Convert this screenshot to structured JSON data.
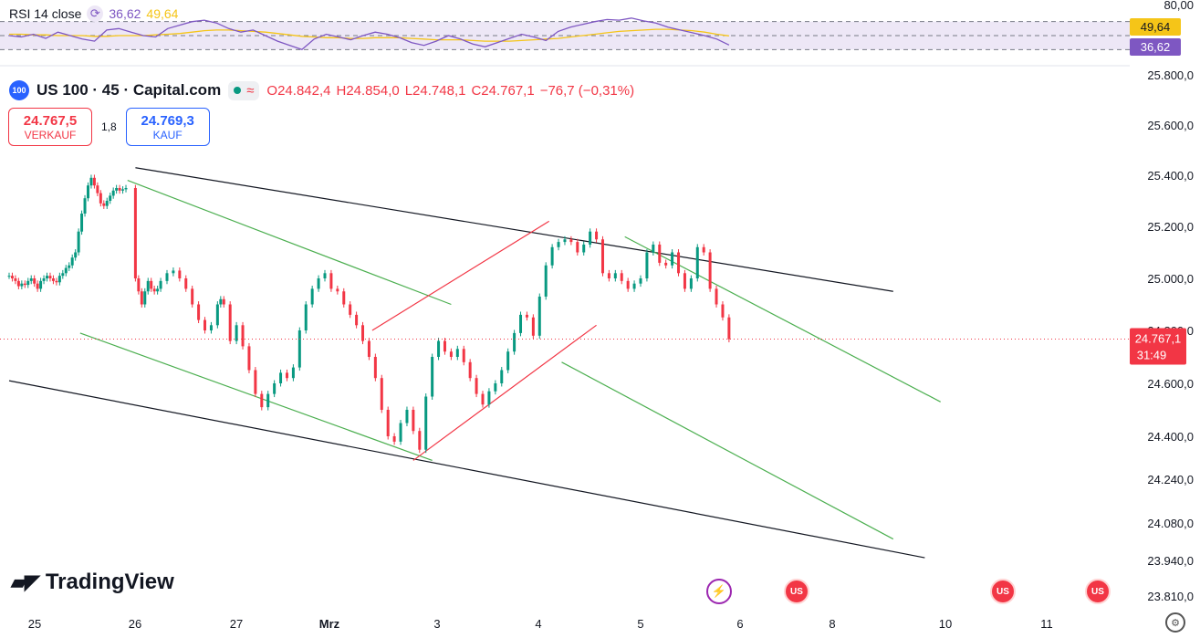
{
  "rsi_panel": {
    "label": "RSI 14 close",
    "value1": "36,62",
    "value2": "49,64",
    "axis_top": "80,00",
    "badge_ma": "49,64",
    "badge_rsi": "36,62"
  },
  "header": {
    "logo_text": "100",
    "symbol": "US 100 · 45 · Capital.com",
    "open": "O24.842,4",
    "high": "H24.854,0",
    "low": "L24.748,1",
    "close": "C24.767,1",
    "change": "−76,7 (−0,31%)"
  },
  "trade": {
    "sell_price": "24.767,5",
    "sell_label": "VERKAUF",
    "spread": "1,8",
    "buy_price": "24.769,3",
    "buy_label": "KAUF"
  },
  "price_badge": {
    "price": "24.767,1",
    "countdown": "31:49"
  },
  "brand": "TradingView",
  "colors": {
    "up": "#089981",
    "down": "#f23645",
    "channel_black": "#131722",
    "channel_green": "#4caf50",
    "channel_red": "#f23645",
    "rsi_line": "#7e57c2",
    "rsi_ma": "#f5c518",
    "rsi_bg": "#ede7f6"
  },
  "icons": [
    "rsi-cycle-icon",
    "bolt-event-icon",
    "us-flag-event-icon",
    "settings-gear-icon"
  ],
  "chart_data": {
    "type": "candlestick",
    "y_axis_labels": [
      "25.800,0",
      "25.600,0",
      "25.400,0",
      "25.200,0",
      "25.000,0",
      "24.800,0",
      "24.600,0",
      "24.400,0",
      "24.240,0",
      "24.080,0",
      "23.940,0",
      "23.810,0"
    ],
    "y_axis_values": [
      25800,
      25600,
      25400,
      25200,
      25000,
      24800,
      24600,
      24400,
      24240,
      24080,
      23940,
      23810
    ],
    "x_axis_labels": [
      "25",
      "26",
      "27",
      "Mrz",
      "3",
      "4",
      "5",
      "6",
      "8",
      "10",
      "11"
    ],
    "candles": [
      [
        0.0,
        25010
      ],
      [
        0.02,
        25000
      ],
      [
        0.04,
        24990
      ],
      [
        0.06,
        24970
      ],
      [
        0.08,
        24980
      ],
      [
        0.1,
        24975
      ],
      [
        0.12,
        24990
      ],
      [
        0.14,
        25000
      ],
      [
        0.16,
        24980
      ],
      [
        0.18,
        24960
      ],
      [
        0.2,
        24990
      ],
      [
        0.22,
        25000
      ],
      [
        0.24,
        25010
      ],
      [
        0.26,
        25000
      ],
      [
        0.28,
        24990
      ],
      [
        0.3,
        24985
      ],
      [
        0.32,
        25010
      ],
      [
        0.34,
        25020
      ],
      [
        0.36,
        25040
      ],
      [
        0.38,
        25050
      ],
      [
        0.4,
        25080
      ],
      [
        0.42,
        25100
      ],
      [
        0.44,
        25180
      ],
      [
        0.46,
        25250
      ],
      [
        0.48,
        25310
      ],
      [
        0.5,
        25360
      ],
      [
        0.52,
        25390
      ],
      [
        0.54,
        25360
      ],
      [
        0.56,
        25330
      ],
      [
        0.58,
        25290
      ],
      [
        0.6,
        25280
      ],
      [
        0.62,
        25300
      ],
      [
        0.64,
        25320
      ],
      [
        0.66,
        25340
      ],
      [
        0.68,
        25350
      ],
      [
        0.7,
        25340
      ],
      [
        0.72,
        25345
      ],
      [
        0.74,
        25350
      ],
      [
        0.8,
        25000
      ],
      [
        0.82,
        24950
      ],
      [
        0.84,
        24900
      ],
      [
        0.86,
        24950
      ],
      [
        0.88,
        24990
      ],
      [
        0.9,
        24960
      ],
      [
        0.92,
        24950
      ],
      [
        0.94,
        24960
      ],
      [
        0.96,
        24990
      ],
      [
        1.0,
        25020
      ],
      [
        1.04,
        25030
      ],
      [
        1.08,
        25000
      ],
      [
        1.12,
        24960
      ],
      [
        1.16,
        24900
      ],
      [
        1.2,
        24840
      ],
      [
        1.24,
        24800
      ],
      [
        1.28,
        24820
      ],
      [
        1.32,
        24900
      ],
      [
        1.34,
        24920
      ],
      [
        1.36,
        24900
      ],
      [
        1.4,
        24760
      ],
      [
        1.44,
        24820
      ],
      [
        1.48,
        24740
      ],
      [
        1.52,
        24650
      ],
      [
        1.56,
        24560
      ],
      [
        1.6,
        24510
      ],
      [
        1.64,
        24560
      ],
      [
        1.68,
        24600
      ],
      [
        1.72,
        24640
      ],
      [
        1.76,
        24620
      ],
      [
        1.8,
        24660
      ],
      [
        1.84,
        24800
      ],
      [
        1.88,
        24900
      ],
      [
        1.92,
        24960
      ],
      [
        1.96,
        25000
      ],
      [
        2.0,
        25020
      ],
      [
        2.04,
        24960
      ],
      [
        2.08,
        24950
      ],
      [
        2.12,
        24900
      ],
      [
        2.16,
        24860
      ],
      [
        2.2,
        24820
      ],
      [
        2.24,
        24760
      ],
      [
        2.28,
        24700
      ],
      [
        2.32,
        24620
      ],
      [
        2.36,
        24500
      ],
      [
        2.4,
        24400
      ],
      [
        2.44,
        24380
      ],
      [
        2.48,
        24450
      ],
      [
        2.52,
        24500
      ],
      [
        2.56,
        24420
      ],
      [
        2.6,
        24350
      ],
      [
        2.64,
        24550
      ],
      [
        2.68,
        24700
      ],
      [
        2.72,
        24760
      ],
      [
        2.76,
        24720
      ],
      [
        2.8,
        24700
      ],
      [
        2.84,
        24730
      ],
      [
        2.88,
        24680
      ],
      [
        2.92,
        24620
      ],
      [
        2.96,
        24560
      ],
      [
        3.0,
        24520
      ],
      [
        3.04,
        24570
      ],
      [
        3.08,
        24600
      ],
      [
        3.12,
        24650
      ],
      [
        3.16,
        24720
      ],
      [
        3.2,
        24790
      ],
      [
        3.24,
        24860
      ],
      [
        3.28,
        24850
      ],
      [
        3.32,
        24780
      ],
      [
        3.36,
        24930
      ],
      [
        3.4,
        25050
      ],
      [
        3.44,
        25120
      ],
      [
        3.48,
        25140
      ],
      [
        3.52,
        25150
      ],
      [
        3.56,
        25140
      ],
      [
        3.6,
        25100
      ],
      [
        3.64,
        25130
      ],
      [
        3.68,
        25180
      ],
      [
        3.72,
        25150
      ],
      [
        3.76,
        25020
      ],
      [
        3.8,
        25000
      ],
      [
        3.84,
        25020
      ],
      [
        3.88,
        24990
      ],
      [
        3.92,
        24960
      ],
      [
        3.96,
        24980
      ],
      [
        4.0,
        25000
      ],
      [
        4.04,
        25100
      ],
      [
        4.08,
        25130
      ],
      [
        4.12,
        25060
      ],
      [
        4.16,
        25050
      ],
      [
        4.2,
        25100
      ],
      [
        4.24,
        25020
      ],
      [
        4.28,
        24960
      ],
      [
        4.32,
        25000
      ],
      [
        4.36,
        25120
      ],
      [
        4.4,
        25100
      ],
      [
        4.44,
        24960
      ],
      [
        4.48,
        24900
      ],
      [
        4.52,
        24850
      ],
      [
        4.56,
        24767
      ]
    ],
    "trendlines": [
      {
        "color": "black",
        "points": [
          [
            0.8,
            25430
          ],
          [
            5.6,
            24950
          ]
        ]
      },
      {
        "color": "black",
        "points": [
          [
            0.0,
            24610
          ],
          [
            5.8,
            23950
          ]
        ]
      },
      {
        "color": "green",
        "points": [
          [
            0.75,
            25380
          ],
          [
            2.8,
            24900
          ]
        ]
      },
      {
        "color": "green",
        "points": [
          [
            0.45,
            24790
          ],
          [
            2.68,
            24310
          ]
        ]
      },
      {
        "color": "red",
        "points": [
          [
            2.3,
            24800
          ],
          [
            3.42,
            25220
          ]
        ]
      },
      {
        "color": "red",
        "points": [
          [
            2.56,
            24310
          ],
          [
            3.72,
            24820
          ]
        ]
      },
      {
        "color": "green",
        "points": [
          [
            3.9,
            25160
          ],
          [
            5.9,
            24530
          ]
        ]
      },
      {
        "color": "green",
        "points": [
          [
            3.5,
            24680
          ],
          [
            5.6,
            24020
          ]
        ]
      }
    ],
    "current_price": 24767.1,
    "rsi": {
      "upper": 70,
      "middle": 50,
      "lower": 30,
      "rsi_values": [
        50,
        48,
        52,
        46,
        55,
        50,
        45,
        42,
        58,
        60,
        55,
        50,
        48,
        60,
        65,
        70,
        72,
        68,
        60,
        55,
        58,
        50,
        42,
        36,
        30,
        45,
        52,
        48,
        44,
        50,
        55,
        52,
        47,
        40,
        36,
        42,
        50,
        45,
        38,
        34,
        40,
        46,
        52,
        48,
        43,
        56,
        62,
        66,
        70,
        73,
        72,
        75,
        71,
        68,
        62,
        58,
        54,
        50,
        45,
        36.62
      ],
      "ma_values": [
        52,
        52,
        51,
        51,
        50,
        50,
        50,
        49,
        49,
        50,
        50,
        50,
        51,
        52,
        53,
        55,
        57,
        58,
        58,
        57,
        56,
        55,
        53,
        51,
        49,
        48,
        47,
        47,
        46,
        46,
        47,
        47,
        47,
        46,
        45,
        44,
        44,
        44,
        43,
        42,
        42,
        42,
        43,
        44,
        45,
        46,
        48,
        50,
        52,
        54,
        56,
        57,
        58,
        59,
        59,
        58,
        57,
        55,
        52,
        49.64
      ]
    }
  }
}
